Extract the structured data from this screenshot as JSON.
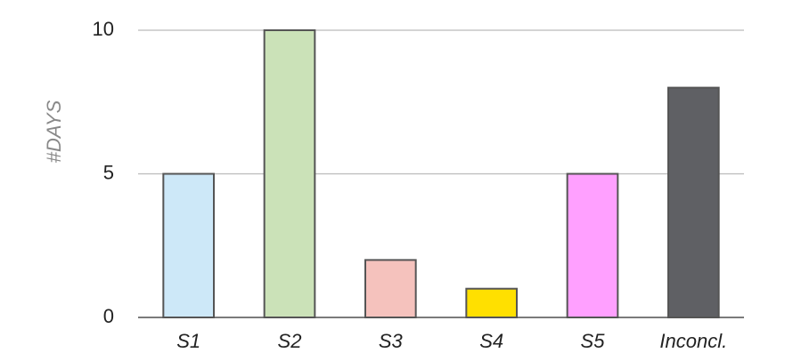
{
  "chart_data": {
    "type": "bar",
    "ylabel": "#DAYS",
    "categories": [
      "S1",
      "S2",
      "S3",
      "S4",
      "S5",
      "Inconcl."
    ],
    "values": [
      5,
      10,
      2,
      1,
      5,
      8
    ],
    "colors": [
      "#cde8f8",
      "#cbe2b8",
      "#f5c2bd",
      "#ffe000",
      "#ffa0ff",
      "#5f6064"
    ],
    "ylim": [
      0,
      10
    ],
    "yticks": [
      0,
      5,
      10
    ],
    "grid": true
  }
}
